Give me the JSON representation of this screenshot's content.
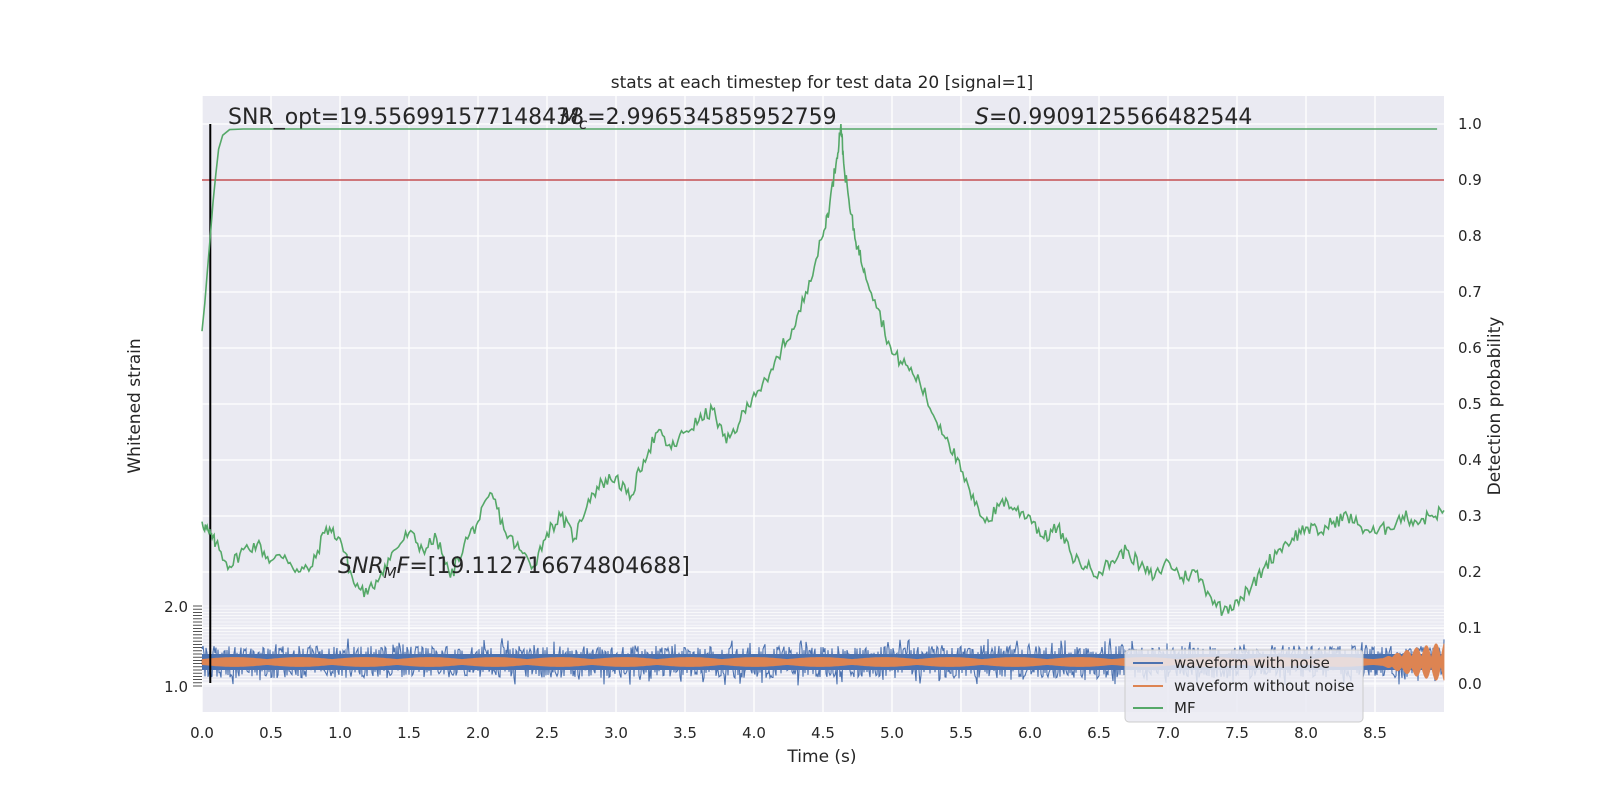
{
  "chart_data": {
    "type": "line",
    "title": "stats at each timestep for test data 20 [signal=1]",
    "xlabel": "Time (s)",
    "ylabel_left": "Whitened strain",
    "ylabel_right": "Detection probability",
    "xlim": [
      0.0,
      9.0
    ],
    "ylim_right": [
      -0.05,
      1.05
    ],
    "x_ticks": [
      "0.0",
      "0.5",
      "1.0",
      "1.5",
      "2.0",
      "2.5",
      "3.0",
      "3.5",
      "4.0",
      "4.5",
      "5.0",
      "5.5",
      "6.0",
      "6.5",
      "7.0",
      "7.5",
      "8.0",
      "8.5"
    ],
    "x_tick_values": [
      0.0,
      0.5,
      1.0,
      1.5,
      2.0,
      2.5,
      3.0,
      3.5,
      4.0,
      4.5,
      5.0,
      5.5,
      6.0,
      6.5,
      7.0,
      7.5,
      8.0,
      8.5
    ],
    "y_ticks_right": [
      "0.0",
      "0.1",
      "0.2",
      "0.3",
      "0.4",
      "0.5",
      "0.6",
      "0.7",
      "0.8",
      "0.9",
      "1.0"
    ],
    "y_tick_values_right": [
      0.0,
      0.1,
      0.2,
      0.3,
      0.4,
      0.5,
      0.6,
      0.7,
      0.8,
      0.9,
      1.0
    ],
    "y_ticks_left_top": "2.0",
    "y_ticks_left_bottom": "1.0",
    "threshold": 0.9,
    "vertical_marker_x": 0.06,
    "annotations": {
      "snr_opt": "SNR_opt=19.556991577148438",
      "mc": "=2.996534585952759",
      "s_value": "=0.9909125566482544",
      "snr_mf": "=[19.112716674804688]"
    },
    "legend": {
      "placement": "lower-right",
      "entries": [
        "waveform with noise",
        "waveform without noise",
        "MF"
      ]
    },
    "colors": {
      "noise": "#4c72b0",
      "clean": "#dd8452",
      "mf": "#55a868",
      "threshold": "#c44e52",
      "background": "#eaeaf2",
      "grid": "#ffffff"
    },
    "series": [
      {
        "name": "MF",
        "x": [
          0.0,
          0.02,
          0.04,
          0.06,
          0.08,
          0.1,
          0.12,
          0.15,
          0.2,
          0.3,
          0.5,
          1.0,
          2.0,
          3.0,
          4.0,
          5.0,
          6.0,
          7.0,
          8.0,
          8.95
        ],
        "values": [
          0.63,
          0.68,
          0.74,
          0.8,
          0.86,
          0.91,
          0.955,
          0.98,
          0.99,
          0.991,
          0.991,
          0.991,
          0.991,
          0.991,
          0.991,
          0.991,
          0.991,
          0.991,
          0.991,
          0.991
        ]
      },
      {
        "name": "Detection probability",
        "x": [
          0.0,
          0.05,
          0.1,
          0.2,
          0.3,
          0.4,
          0.5,
          0.6,
          0.7,
          0.8,
          0.9,
          1.0,
          1.1,
          1.2,
          1.3,
          1.4,
          1.5,
          1.6,
          1.7,
          1.8,
          1.9,
          2.0,
          2.1,
          2.2,
          2.3,
          2.4,
          2.5,
          2.6,
          2.7,
          2.8,
          2.9,
          3.0,
          3.1,
          3.2,
          3.3,
          3.4,
          3.5,
          3.6,
          3.7,
          3.8,
          3.9,
          4.0,
          4.1,
          4.2,
          4.3,
          4.4,
          4.5,
          4.55,
          4.6,
          4.63,
          4.65,
          4.7,
          4.75,
          4.8,
          4.9,
          5.0,
          5.1,
          5.2,
          5.3,
          5.4,
          5.5,
          5.6,
          5.7,
          5.8,
          5.9,
          6.0,
          6.1,
          6.2,
          6.3,
          6.4,
          6.5,
          6.6,
          6.7,
          6.8,
          6.9,
          7.0,
          7.1,
          7.2,
          7.3,
          7.4,
          7.5,
          7.6,
          7.7,
          7.8,
          7.9,
          8.0,
          8.1,
          8.2,
          8.3,
          8.4,
          8.5,
          8.6,
          8.7,
          8.8,
          8.9,
          9.0
        ],
        "values": [
          0.29,
          0.27,
          0.25,
          0.21,
          0.24,
          0.25,
          0.22,
          0.23,
          0.2,
          0.21,
          0.28,
          0.26,
          0.18,
          0.16,
          0.2,
          0.24,
          0.27,
          0.24,
          0.26,
          0.19,
          0.25,
          0.29,
          0.34,
          0.27,
          0.24,
          0.21,
          0.27,
          0.3,
          0.26,
          0.33,
          0.36,
          0.37,
          0.33,
          0.4,
          0.45,
          0.42,
          0.45,
          0.47,
          0.49,
          0.43,
          0.47,
          0.52,
          0.54,
          0.6,
          0.64,
          0.72,
          0.8,
          0.86,
          0.94,
          1.0,
          0.93,
          0.84,
          0.78,
          0.74,
          0.67,
          0.59,
          0.57,
          0.54,
          0.48,
          0.44,
          0.38,
          0.32,
          0.29,
          0.33,
          0.31,
          0.3,
          0.26,
          0.28,
          0.23,
          0.21,
          0.2,
          0.22,
          0.24,
          0.21,
          0.19,
          0.22,
          0.19,
          0.2,
          0.16,
          0.13,
          0.15,
          0.17,
          0.21,
          0.24,
          0.26,
          0.28,
          0.27,
          0.29,
          0.3,
          0.28,
          0.27,
          0.28,
          0.3,
          0.29,
          0.3,
          0.31
        ]
      }
    ]
  }
}
